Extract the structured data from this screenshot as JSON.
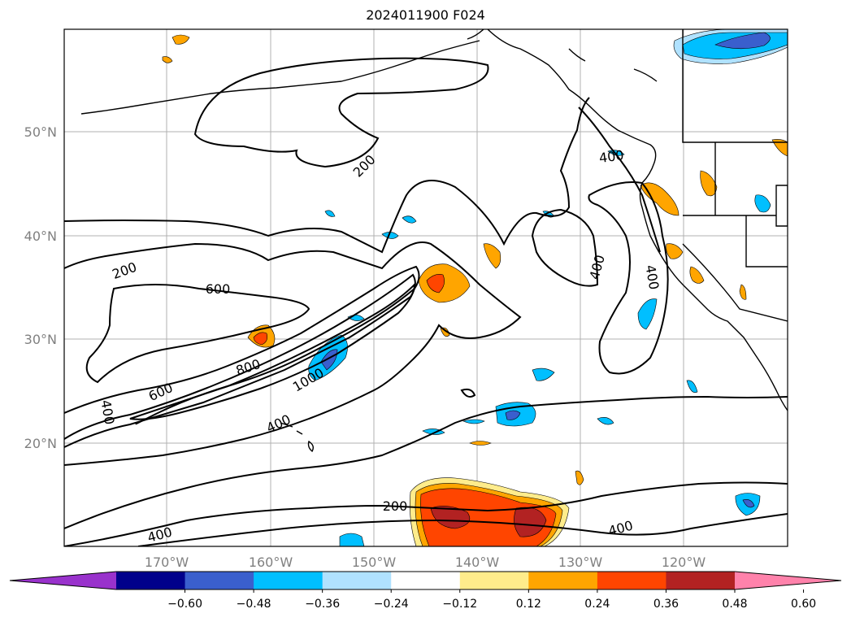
{
  "title": "2024011900 F024",
  "map": {
    "lat_labels": [
      "50°N",
      "40°N",
      "30°N",
      "20°N"
    ],
    "lon_labels": [
      "170°W",
      "160°W",
      "150°W",
      "140°W",
      "130°W",
      "120°W"
    ],
    "contour_labels": [
      "200",
      "200",
      "600",
      "800",
      "600",
      "1000",
      "400",
      "400",
      "400",
      "400",
      "400",
      "200",
      "400",
      "400"
    ]
  },
  "colorbar": {
    "ticks": [
      "−0.60",
      "−0.48",
      "−0.36",
      "−0.24",
      "−0.12",
      "0.12",
      "0.24",
      "0.36",
      "0.48",
      "0.60"
    ],
    "colors": [
      "#9932cc",
      "#00008b",
      "#3a5fcd",
      "#00bfff",
      "#b0e2ff",
      "#ffffff",
      "#ffec8b",
      "#ffa500",
      "#ff4500",
      "#b22222",
      "#ff82ab"
    ]
  }
}
